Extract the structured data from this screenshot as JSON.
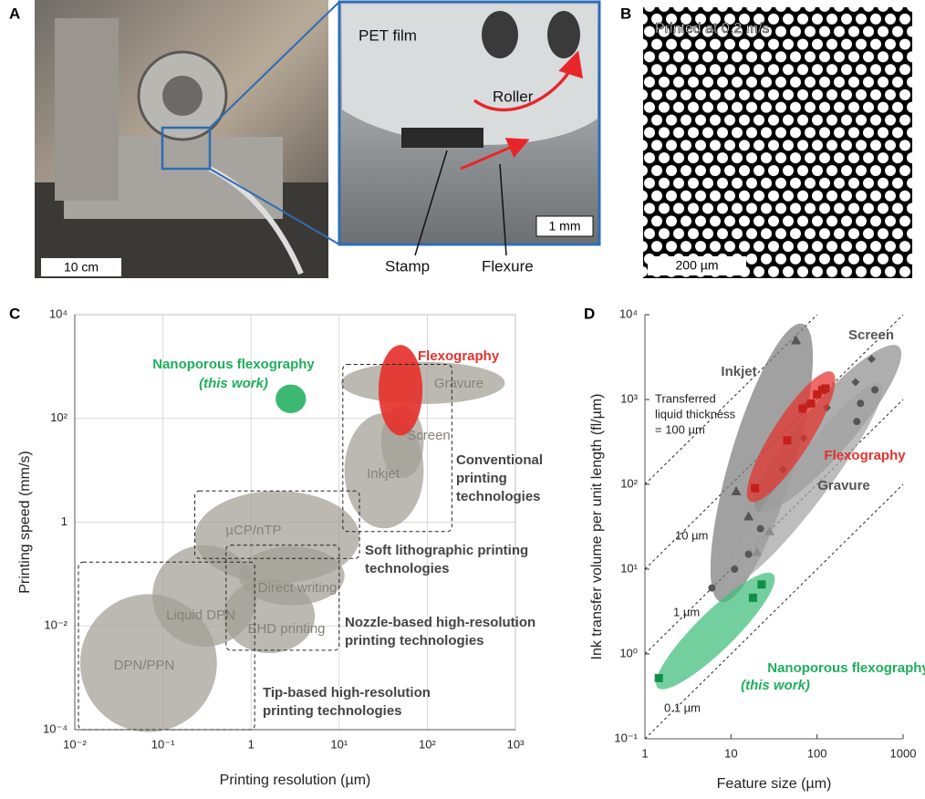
{
  "panels": {
    "A": {
      "letter": "A",
      "pet_film": "PET film",
      "roller": "Roller",
      "stamp": "Stamp",
      "flexure": "Flexure",
      "scale_main": "10 cm",
      "scale_inset": "1 mm"
    },
    "B": {
      "letter": "B",
      "caption": "Printed at 0.2 m/s",
      "scale": "200 µm"
    }
  },
  "chart_data": [
    {
      "type": "region",
      "panel": "C",
      "xlabel": "Printing resolution (µm)",
      "ylabel": "Printing speed (mm/s)",
      "xscale": "log",
      "yscale": "log",
      "xlim": [
        0.01,
        1000
      ],
      "ylim": [
        0.0001,
        10000
      ],
      "xticks": [
        {
          "value": 0.01,
          "label": "10⁻²"
        },
        {
          "value": 0.1,
          "label": "10⁻¹"
        },
        1,
        {
          "value": 10,
          "label": "10¹"
        },
        {
          "value": 100,
          "label": "10²"
        },
        {
          "value": 1000,
          "label": "10³"
        }
      ],
      "yticks": [
        {
          "value": 0.0001,
          "label": "10⁻⁴"
        },
        {
          "value": 0.01,
          "label": "10⁻²"
        },
        1,
        {
          "value": 100,
          "label": "10²"
        },
        {
          "value": 10000,
          "label": "10⁴"
        }
      ],
      "grid": true,
      "regions": [
        {
          "name": "DPN/PPN",
          "color": "#a29e94",
          "label_color": "#858279",
          "x": [
            0.0115,
            0.41
          ],
          "y": [
            9e-05,
            0.041
          ]
        },
        {
          "name": "Liquid DPN",
          "color": "#a29e94",
          "label_color": "#858279",
          "x": [
            0.076,
            1.17
          ],
          "y": [
            0.004,
            0.36
          ]
        },
        {
          "name": "EHD printing",
          "color": "#a29e94",
          "label_color": "#858279",
          "x": [
            0.49,
            5.3
          ],
          "y": [
            0.003,
            0.08
          ]
        },
        {
          "name": "Direct writing",
          "color": "#a29e94",
          "label_color": "#858279",
          "x": [
            0.73,
            11.5
          ],
          "y": [
            0.025,
            0.34
          ]
        },
        {
          "name": "µCP/nTP",
          "color": "#a29e94",
          "label_color": "#858279",
          "x": [
            0.23,
            17
          ],
          "y": [
            0.066,
            4
          ]
        },
        {
          "name": "Inkjet",
          "color": "#a29e94",
          "label_color": "#858279",
          "x": [
            11.5,
            91
          ],
          "y": [
            0.76,
            126
          ]
        },
        {
          "name": "Screen",
          "color": "#a29e94",
          "label_color": "#858279",
          "x": [
            30,
            91
          ],
          "y": [
            7,
            178
          ]
        },
        {
          "name": "Gravure",
          "color": "#a29e94",
          "label_color": "#858279",
          "x": [
            10.5,
            760
          ],
          "y": [
            190,
            1230
          ]
        },
        {
          "name": "Flexography",
          "color": "#e5322d",
          "label_color": "#e5322d",
          "x": [
            28,
            88
          ],
          "y": [
            47,
            2600
          ]
        },
        {
          "name": "Nanoporous flexography",
          "note": "(this work)",
          "color": "#2bb266",
          "label_color": "#1fae5b",
          "x": [
            1.9,
            4.2
          ],
          "y": [
            126,
            450
          ]
        }
      ],
      "groups": [
        {
          "label": [
            "Conventional",
            "printing",
            "technologies"
          ],
          "x": [
            11,
            190
          ],
          "y": [
            0.66,
            1100
          ]
        },
        {
          "label": [
            "Soft lithographic printing",
            "technologies"
          ],
          "x": [
            0.23,
            17
          ],
          "y": [
            0.2,
            4
          ]
        },
        {
          "label": [
            "Nozzle-based high-resolution",
            "printing technologies"
          ],
          "x": [
            0.52,
            10
          ],
          "y": [
            0.0034,
            0.36
          ]
        },
        {
          "label": [
            "Tip-based high-resolution",
            "printing technologies"
          ],
          "x": [
            0.011,
            1.1
          ],
          "y": [
            0.0001,
            0.17
          ]
        }
      ]
    },
    {
      "type": "scatter",
      "panel": "D",
      "xlabel": "Feature size (µm)",
      "ylabel": "Ink transfer volume per unit length (fl/µm)",
      "xscale": "log",
      "yscale": "log",
      "xlim": [
        1,
        1000
      ],
      "ylim": [
        0.1,
        10000
      ],
      "xticks": [
        1,
        10,
        100,
        1000
      ],
      "yticks": [
        {
          "value": 0.1,
          "label": "10⁻¹"
        },
        {
          "value": 1,
          "label": "10⁰"
        },
        {
          "value": 10,
          "label": "10¹"
        },
        {
          "value": 100,
          "label": "10²"
        },
        {
          "value": 1000,
          "label": "10³"
        },
        {
          "value": 10000,
          "label": "10⁴"
        }
      ],
      "grid": false,
      "thickness_lines": [
        {
          "value": 100,
          "label": [
            "Transferred",
            "liquid thickness",
            "= 100 µm"
          ]
        },
        {
          "value": 10,
          "label": [
            "10 µm"
          ]
        },
        {
          "value": 1,
          "label": [
            "1 µm"
          ]
        },
        {
          "value": 0.1,
          "label": [
            "0.1 µm"
          ]
        }
      ],
      "regions": [
        {
          "name": "Inkjet",
          "color": "#7d7d7d",
          "label_color": "#555555",
          "marker": "triangle",
          "marker_color": "#555555",
          "from": [
            7.6,
            4.1
          ],
          "to": [
            68,
            7800
          ],
          "width": 0.75,
          "x": [
            11.5,
            16,
            20,
            28,
            57
          ],
          "y": [
            83,
            42,
            16,
            28,
            5000
          ]
        },
        {
          "name": "Screen",
          "color": "#8f8f8f",
          "label_color": "#555555",
          "marker": "diamond",
          "marker_color": "#555555",
          "from": [
            20,
            49
          ],
          "to": [
            890,
            4200
          ],
          "width": 0.6,
          "x": [
            40,
            70,
            130,
            280,
            430
          ],
          "y": [
            150,
            350,
            800,
            1600,
            3000
          ]
        },
        {
          "name": "Gravure",
          "color": "#a3a3a3",
          "label_color": "#555555",
          "marker": "circle",
          "marker_color": "#555555",
          "from": [
            9.7,
            6.8
          ],
          "to": [
            550,
            1550
          ],
          "width": 0.5,
          "x": [
            6,
            11,
            16,
            22,
            75,
            290,
            320,
            470
          ],
          "y": [
            6,
            10,
            15,
            30,
            850,
            550,
            900,
            1300
          ]
        },
        {
          "name": "Flexography",
          "color": "#e5322d",
          "label_color": "#e5322d",
          "marker": "square",
          "marker_color": "#c41f1b",
          "from": [
            16.6,
            63
          ],
          "to": [
            150,
            2100
          ],
          "width": 0.45,
          "x": [
            19,
            45,
            68,
            85,
            100,
            115,
            125
          ],
          "y": [
            90,
            330,
            780,
            900,
            1150,
            1300,
            1350
          ]
        },
        {
          "name": "Nanoporous flexography",
          "note": "(this work)",
          "color": "#3dbd78",
          "label_color": "#1fae5b",
          "marker": "square",
          "marker_color": "#0f8f45",
          "from": [
            1.4,
            0.4
          ],
          "to": [
            31,
            8.7
          ],
          "width": 0.45,
          "x": [
            1.45,
            18,
            22.7
          ],
          "y": [
            0.52,
            4.6,
            6.6
          ]
        }
      ]
    }
  ]
}
